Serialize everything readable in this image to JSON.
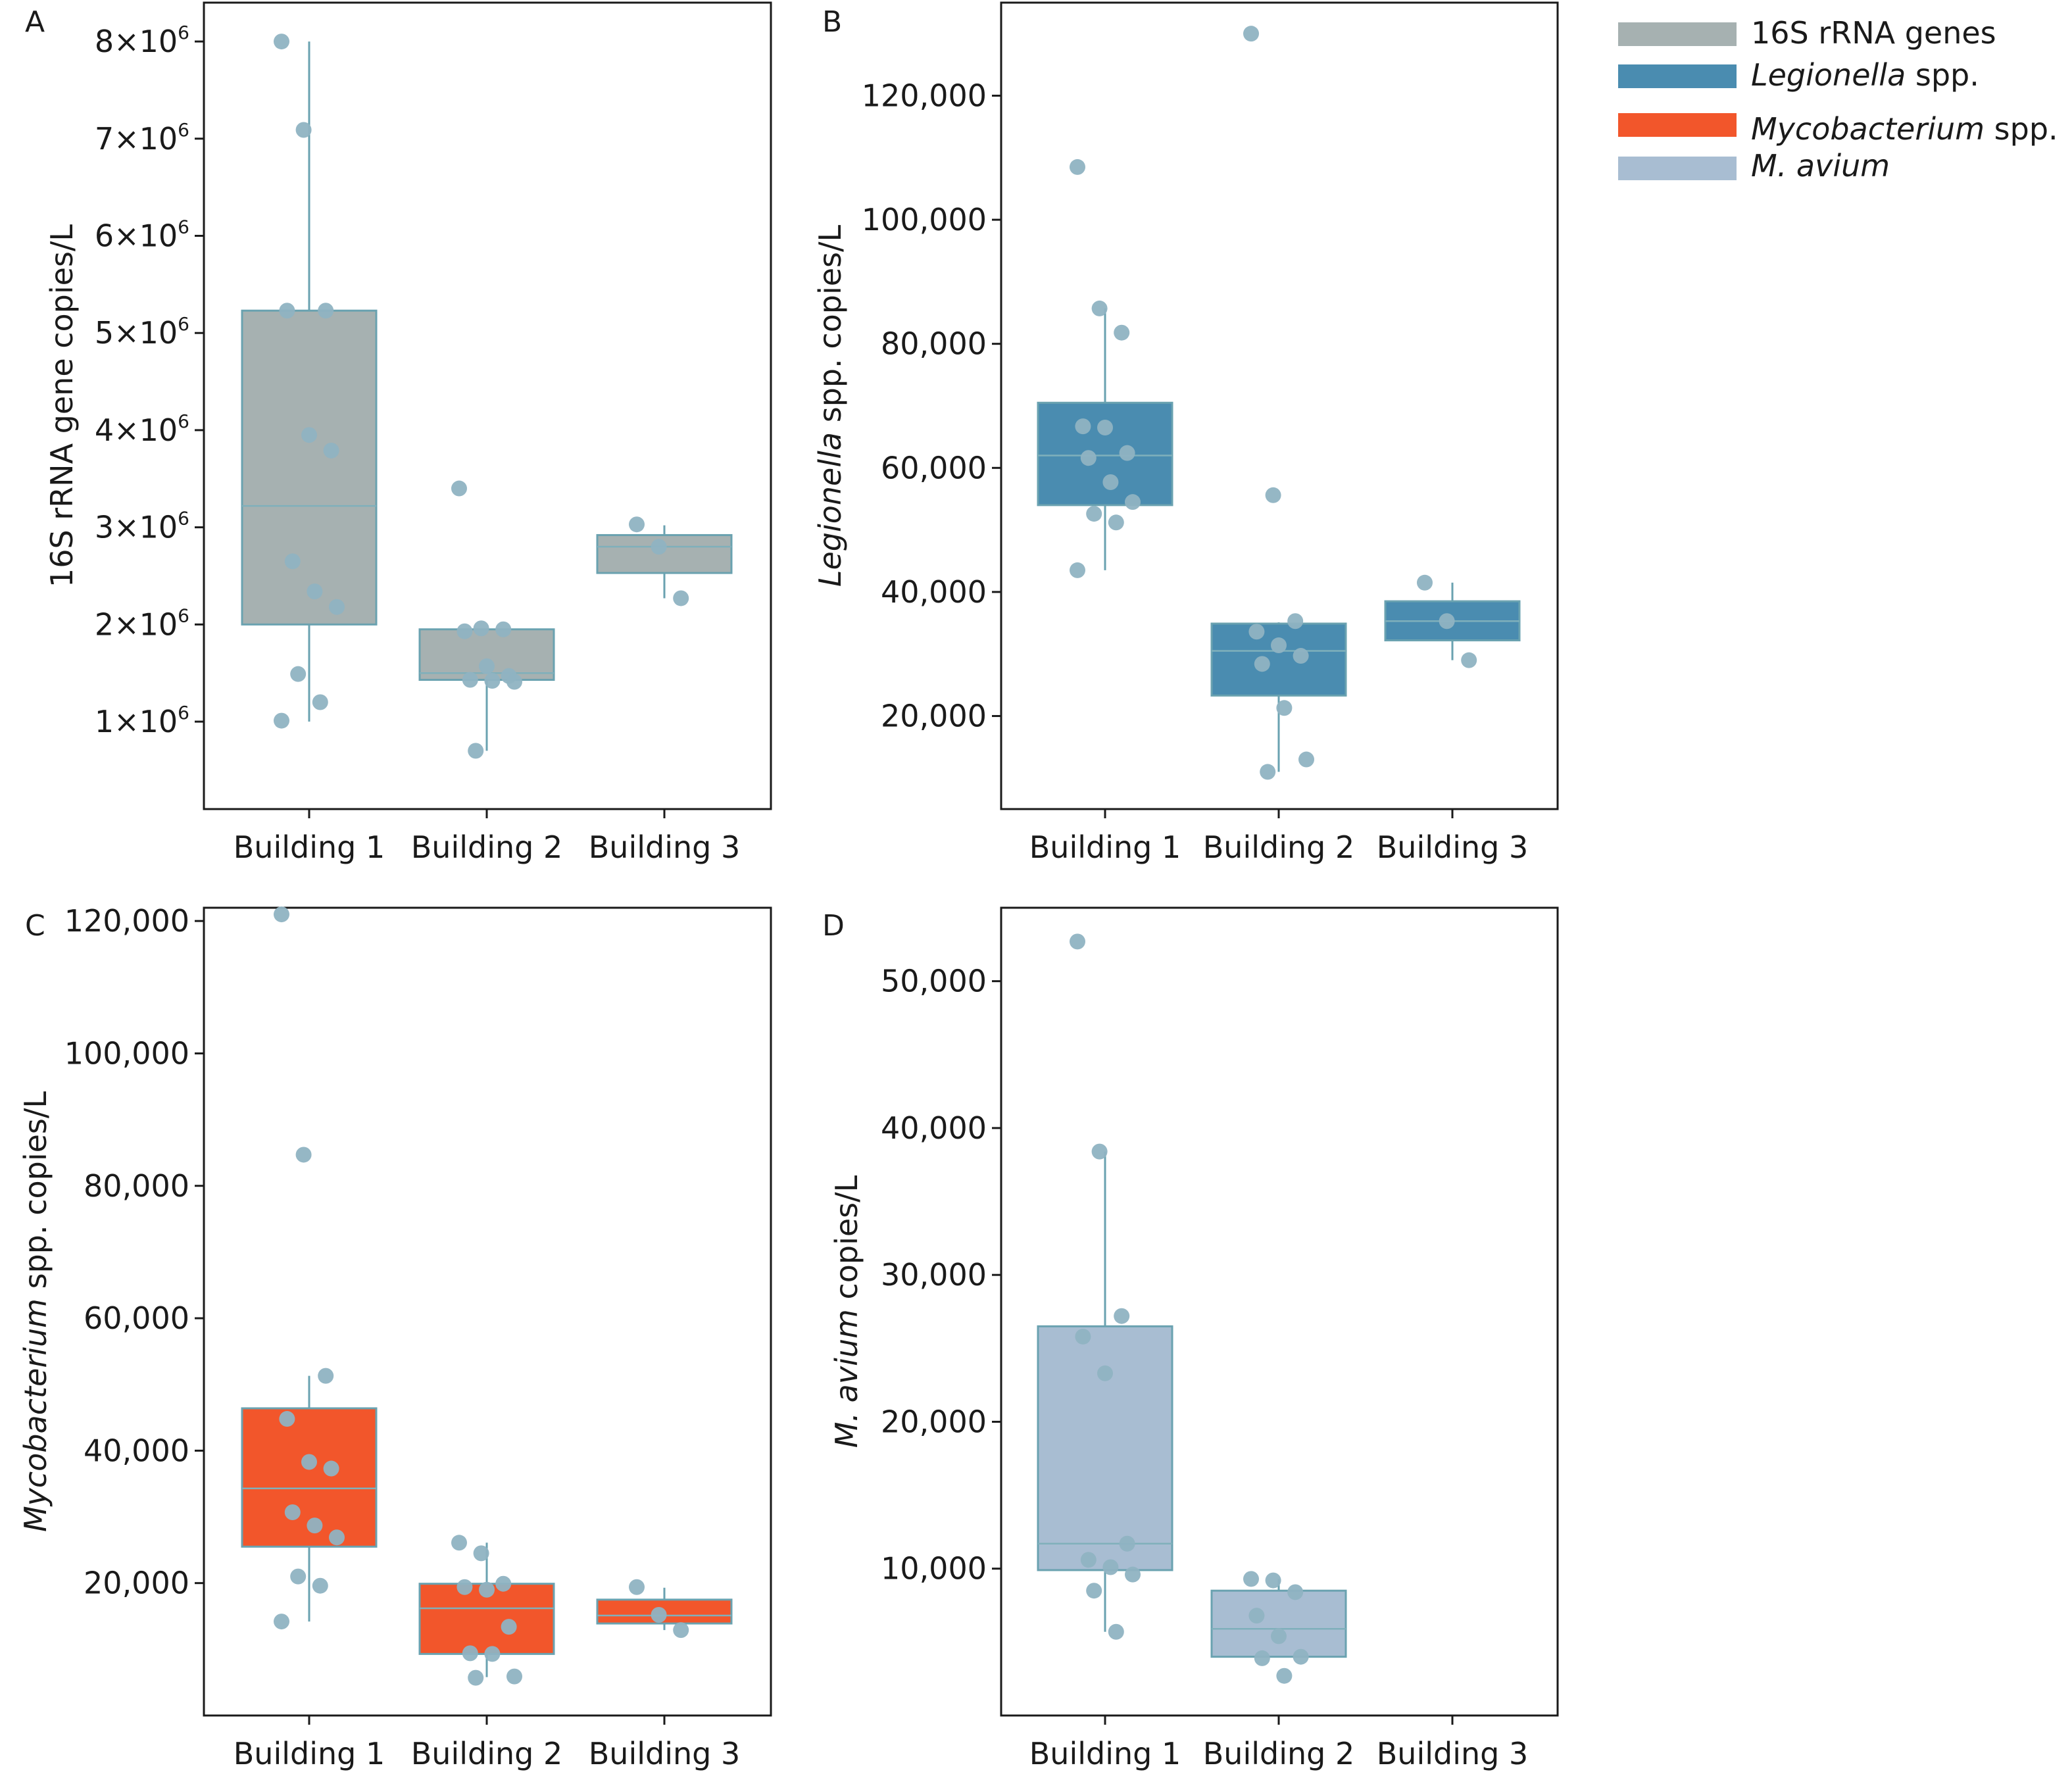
{
  "legend": {
    "items": [
      {
        "parts": [
          {
            "text": "16S rRNA genes",
            "italic": false
          }
        ],
        "color": "#a6b1b1"
      },
      {
        "parts": [
          {
            "text": "Legionella",
            "italic": true
          },
          {
            "text": " spp.",
            "italic": false
          }
        ],
        "color": "#4a8cb0"
      },
      {
        "parts": [
          {
            "text": "Mycobacterium",
            "italic": true
          },
          {
            "text": " spp.",
            "italic": false
          }
        ],
        "color": "#f2562b"
      },
      {
        "parts": [
          {
            "text": "M. avium",
            "italic": true
          }
        ],
        "color": "#a8bdd2"
      }
    ]
  },
  "colors": {
    "point": "#8fb3c2",
    "median_line": "#7fb0bb",
    "box_edge": "#6aa2b0",
    "frame": "#1a1a1a"
  },
  "chart_data": [
    {
      "panel": "A",
      "type": "box",
      "categories": [
        "Building 1",
        "Building 2",
        "Building 3"
      ],
      "ylabel_parts": [
        {
          "text": "16S rRNA gene copies/L",
          "italic": false
        }
      ],
      "ylim": [
        100000,
        8400000
      ],
      "ticks": [
        {
          "value": 1000000,
          "base": "1×10",
          "exp": "6"
        },
        {
          "value": 2000000,
          "base": "2×10",
          "exp": "6"
        },
        {
          "value": 3000000,
          "base": "3×10",
          "exp": "6"
        },
        {
          "value": 4000000,
          "base": "4×10",
          "exp": "6"
        },
        {
          "value": 5000000,
          "base": "5×10",
          "exp": "6"
        },
        {
          "value": 6000000,
          "base": "6×10",
          "exp": "6"
        },
        {
          "value": 7000000,
          "base": "7×10",
          "exp": "6"
        },
        {
          "value": 8000000,
          "base": "8×10",
          "exp": "6"
        }
      ],
      "fill": "#a6b1b1",
      "boxes": [
        {
          "category": "Building 1",
          "whisker_low": 1000000,
          "q1": 2000000,
          "median": 3220000,
          "q3": 5230000,
          "whisker_high": 8000000,
          "points": [
            8000000,
            7090000,
            5230000,
            5230000,
            3950000,
            3790000,
            2650000,
            2340000,
            2180000,
            1490000,
            1200000,
            1010000
          ]
        },
        {
          "category": "Building 2",
          "whisker_low": 700000,
          "q1": 1430000,
          "median": 1500000,
          "q3": 1950000,
          "whisker_high": 1950000,
          "points": [
            3400000,
            1960000,
            1950000,
            1930000,
            1570000,
            1470000,
            1430000,
            1420000,
            1410000,
            700000
          ]
        },
        {
          "category": "Building 3",
          "whisker_low": 2270000,
          "q1": 2530000,
          "median": 2800000,
          "q3": 2920000,
          "whisker_high": 3020000,
          "points": [
            3030000,
            2800000,
            2270000
          ]
        }
      ]
    },
    {
      "panel": "B",
      "type": "box",
      "categories": [
        "Building 1",
        "Building 2",
        "Building 3"
      ],
      "ylabel_parts": [
        {
          "text": "Legionella",
          "italic": true
        },
        {
          "text": " spp. copies/L",
          "italic": false
        }
      ],
      "ylim": [
        5000,
        135000
      ],
      "ticks": [
        {
          "value": 20000,
          "label": "20,000"
        },
        {
          "value": 40000,
          "label": "40,000"
        },
        {
          "value": 60000,
          "label": "60,000"
        },
        {
          "value": 80000,
          "label": "80,000"
        },
        {
          "value": 100000,
          "label": "100,000"
        },
        {
          "value": 120000,
          "label": "120,000"
        }
      ],
      "fill": "#4a8cb0",
      "boxes": [
        {
          "category": "Building 1",
          "whisker_low": 43500,
          "q1": 54000,
          "median": 62000,
          "q3": 70500,
          "whisker_high": 85700,
          "points": [
            108500,
            85700,
            81800,
            66700,
            66500,
            62400,
            61600,
            57700,
            54500,
            52600,
            51200,
            43500
          ]
        },
        {
          "category": "Building 2",
          "whisker_low": 11000,
          "q1": 23300,
          "median": 30500,
          "q3": 34900,
          "whisker_high": 35100,
          "points": [
            130000,
            55600,
            35300,
            33600,
            31400,
            29700,
            28400,
            21300,
            13000,
            11000
          ]
        },
        {
          "category": "Building 3",
          "whisker_low": 29000,
          "q1": 32200,
          "median": 35300,
          "q3": 38500,
          "whisker_high": 41500,
          "points": [
            41500,
            35300,
            29000
          ]
        }
      ]
    },
    {
      "panel": "C",
      "type": "box",
      "categories": [
        "Building 1",
        "Building 2",
        "Building 3"
      ],
      "ylabel_parts": [
        {
          "text": "Mycobacterium",
          "italic": true
        },
        {
          "text": " spp. copies/L",
          "italic": false
        }
      ],
      "ylim": [
        0,
        122000
      ],
      "ticks": [
        {
          "value": 20000,
          "label": "20,000"
        },
        {
          "value": 40000,
          "label": "40,000"
        },
        {
          "value": 60000,
          "label": "60,000"
        },
        {
          "value": 80000,
          "label": "80,000"
        },
        {
          "value": 100000,
          "label": "100,000"
        },
        {
          "value": 120000,
          "label": "120,000"
        }
      ],
      "fill": "#f2562b",
      "boxes": [
        {
          "category": "Building 1",
          "whisker_low": 14200,
          "q1": 25500,
          "median": 34300,
          "q3": 46400,
          "whisker_high": 51300,
          "points": [
            121000,
            84700,
            51300,
            44800,
            38300,
            37300,
            30700,
            28700,
            26900,
            21000,
            19600,
            14200
          ]
        },
        {
          "category": "Building 2",
          "whisker_low": 5800,
          "q1": 9300,
          "median": 16200,
          "q3": 19900,
          "whisker_high": 26100,
          "points": [
            26100,
            24500,
            19900,
            19400,
            19000,
            13400,
            9400,
            9300,
            5900,
            5700
          ]
        },
        {
          "category": "Building 3",
          "whisker_low": 12900,
          "q1": 13900,
          "median": 15100,
          "q3": 17500,
          "whisker_high": 19300,
          "points": [
            19400,
            15200,
            12900
          ]
        }
      ]
    },
    {
      "panel": "D",
      "type": "box",
      "categories": [
        "Building 1",
        "Building 2",
        "Building 3"
      ],
      "ylabel_parts": [
        {
          "text": "M. avium",
          "italic": true
        },
        {
          "text": " copies/L",
          "italic": false
        }
      ],
      "ylim": [
        0,
        55000
      ],
      "ticks": [
        {
          "value": 10000,
          "label": "10,000"
        },
        {
          "value": 20000,
          "label": "20,000"
        },
        {
          "value": 30000,
          "label": "30,000"
        },
        {
          "value": 40000,
          "label": "40,000"
        },
        {
          "value": 50000,
          "label": "50,000"
        }
      ],
      "fill": "#a8bdd2",
      "boxes": [
        {
          "category": "Building 1",
          "whisker_low": 5700,
          "q1": 9900,
          "median": 11700,
          "q3": 26500,
          "whisker_high": 38400,
          "points": [
            52700,
            38400,
            27200,
            25800,
            23300,
            11700,
            10600,
            10100,
            9600,
            8500,
            5700
          ]
        },
        {
          "category": "Building 2",
          "whisker_low": 4000,
          "q1": 4000,
          "median": 5900,
          "q3": 8500,
          "whisker_high": 9300,
          "points": [
            9300,
            9200,
            8400,
            6800,
            5400,
            4000,
            3900,
            2700
          ]
        }
      ]
    }
  ]
}
